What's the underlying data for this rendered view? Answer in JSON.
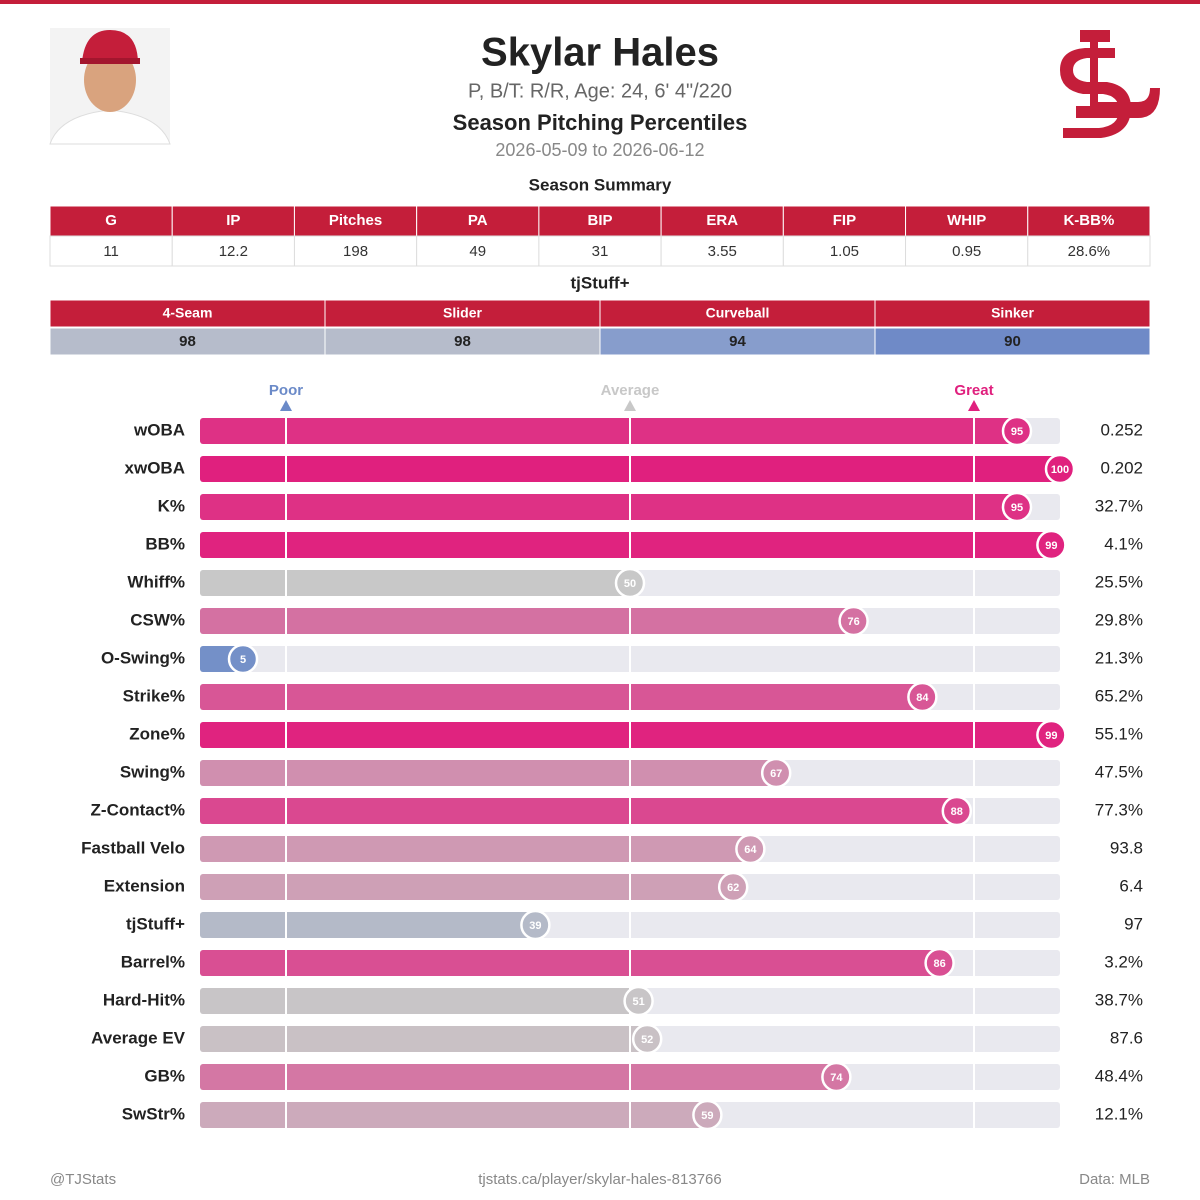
{
  "header": {
    "name": "Skylar Hales",
    "bio": "P, B/T: R/R, Age: 24, 6' 4\"/220",
    "subtitle": "Season Pitching Percentiles",
    "dates": "2026-05-09 to 2026-06-12"
  },
  "summary": {
    "title": "Season Summary",
    "columns": [
      "G",
      "IP",
      "Pitches",
      "PA",
      "BIP",
      "ERA",
      "FIP",
      "WHIP",
      "K-BB%"
    ],
    "values": [
      "11",
      "12.2",
      "198",
      "49",
      "31",
      "3.55",
      "1.05",
      "0.95",
      "28.6%"
    ]
  },
  "stuff": {
    "title": "tjStuff+",
    "columns": [
      "4-Seam",
      "Slider",
      "Curveball",
      "Sinker"
    ],
    "values": [
      98,
      98,
      94,
      90
    ],
    "colors": [
      "#b6bccb",
      "#b6bccb",
      "#879dcc",
      "#6f8ac7"
    ]
  },
  "chart_data": {
    "type": "percentile-bar",
    "categories": [
      "wOBA",
      "xwOBA",
      "K%",
      "BB%",
      "Whiff%",
      "CSW%",
      "O-Swing%",
      "Strike%",
      "Zone%",
      "Swing%",
      "Z-Contact%",
      "Fastball Velo",
      "Extension",
      "tjStuff+",
      "Barrel%",
      "Hard-Hit%",
      "Average EV",
      "GB%",
      "SwStr%"
    ],
    "values": [
      95,
      100,
      95,
      99,
      50,
      76,
      5,
      84,
      99,
      67,
      88,
      64,
      62,
      39,
      86,
      51,
      52,
      74,
      59
    ],
    "stats": [
      "0.252",
      "0.202",
      "32.7%",
      "4.1%",
      "25.5%",
      "29.8%",
      "21.3%",
      "65.2%",
      "55.1%",
      "47.5%",
      "77.3%",
      "93.8",
      "6.4",
      "97",
      "3.2%",
      "38.7%",
      "87.6",
      "48.4%",
      "12.1%"
    ],
    "xlim": [
      0,
      100
    ],
    "markers": [
      {
        "label": "Poor",
        "value": 10,
        "color": "#6b8ac8"
      },
      {
        "label": "Average",
        "value": 50,
        "color": "#c8c8c8"
      },
      {
        "label": "Great",
        "value": 90,
        "color": "#e0207e"
      }
    ],
    "colors": {
      "low": "#6b8ac8",
      "mid": "#c8c8c8",
      "high": "#e0207e"
    }
  },
  "footer": {
    "left": "@TJStats",
    "center": "tjstats.ca/player/skylar-hales-813766",
    "right": "Data: MLB"
  }
}
